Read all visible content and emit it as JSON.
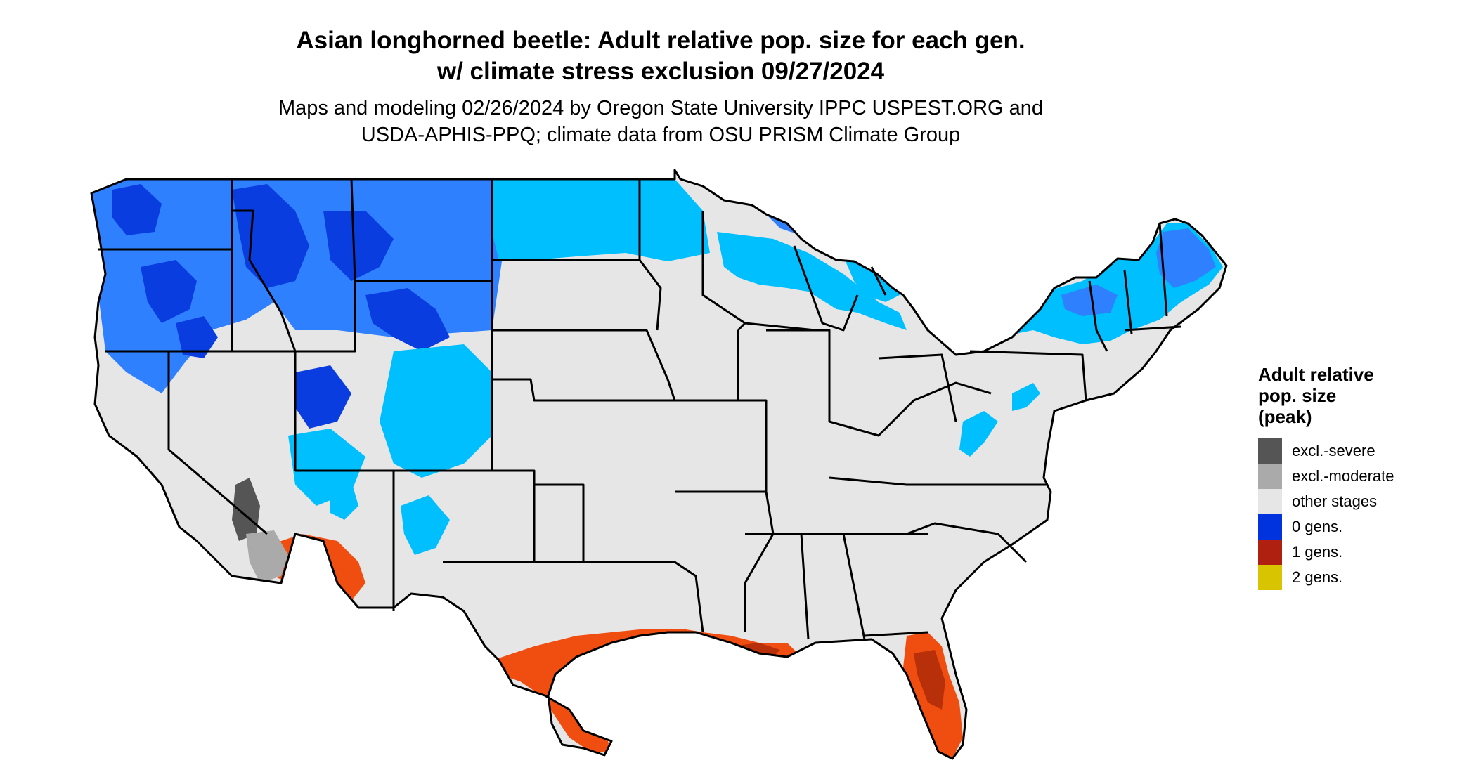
{
  "title": {
    "line1": "Asian longhorned beetle: Adult relative pop. size for each gen.",
    "line2": "w/ climate stress exclusion 09/27/2024"
  },
  "subtitle": {
    "line1": "Maps and modeling 02/26/2024 by Oregon State University IPPC USPEST.ORG and",
    "line2": "USDA-APHIS-PPQ; climate data from OSU PRISM Climate Group"
  },
  "legend": {
    "title_lines": [
      "Adult relative",
      "pop. size",
      "(peak)"
    ],
    "items": [
      {
        "label": "excl.-severe",
        "color": "#555555"
      },
      {
        "label": "excl.-moderate",
        "color": "#aaaaaa"
      },
      {
        "label": "other stages",
        "color": "#e6e6e6"
      },
      {
        "label": "0 gens.",
        "color": "#0033dd"
      },
      {
        "label": "1 gens.",
        "color": "#b02010"
      },
      {
        "label": "2 gens.",
        "color": "#d8c400"
      }
    ]
  },
  "map": {
    "region": "contiguous-us",
    "colors": {
      "base": "#e6e6e6",
      "cool_light": "#00bfff",
      "cool_mid": "#2f80ff",
      "cool_dark": "#0a3de0",
      "warm": "#f04e10",
      "warm_dark": "#b8300a",
      "excl_severe": "#555555",
      "excl_moderate": "#aaaaaa",
      "boundary": "#000000"
    }
  }
}
